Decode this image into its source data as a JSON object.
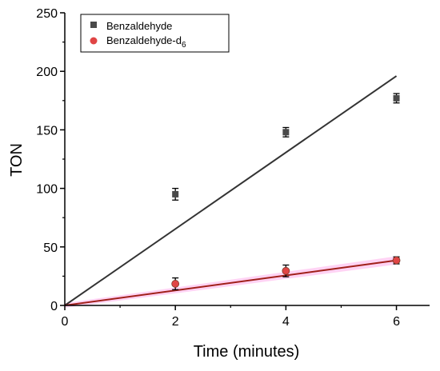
{
  "chart_data": {
    "type": "scatter",
    "xlabel": "Time (minutes)",
    "ylabel": "TON",
    "xlim": [
      0,
      6.6
    ],
    "ylim": [
      0,
      250
    ],
    "x_ticks": [
      0,
      2,
      4,
      6
    ],
    "y_ticks": [
      0,
      50,
      100,
      150,
      200,
      250
    ],
    "x_tick_labels": [
      "0",
      "2",
      "4",
      "6"
    ],
    "y_tick_labels": [
      "0",
      "50",
      "100",
      "150",
      "200",
      "250"
    ],
    "legend_position": "top-left",
    "grid": false,
    "series": [
      {
        "name": "Benzaldehyde",
        "legend_label_main": "Benzaldehyde",
        "legend_label_sub": "",
        "marker": "square",
        "color": "#4a4a4a",
        "points": [
          {
            "x": 2,
            "y": 95,
            "err": 5
          },
          {
            "x": 4,
            "y": 148,
            "err": 4
          },
          {
            "x": 6,
            "y": 177,
            "err": 4
          }
        ],
        "fit": {
          "x": [
            0,
            6
          ],
          "y": [
            0,
            196
          ]
        },
        "fit_color": "#333333"
      },
      {
        "name": "Benzaldehyde-d6",
        "legend_label_main": "Benzaldehyde-d",
        "legend_label_sub": "6",
        "marker": "circle",
        "color": "#e04545",
        "points": [
          {
            "x": 2,
            "y": 18.5,
            "err": 5
          },
          {
            "x": 4,
            "y": 29.5,
            "err": 5
          },
          {
            "x": 6,
            "y": 38.5,
            "err": 3
          }
        ],
        "fit": {
          "x": [
            0,
            6
          ],
          "y": [
            0,
            38.5
          ]
        },
        "fit_color": "#a0201a",
        "band_color": "#ffc0f0"
      }
    ]
  }
}
